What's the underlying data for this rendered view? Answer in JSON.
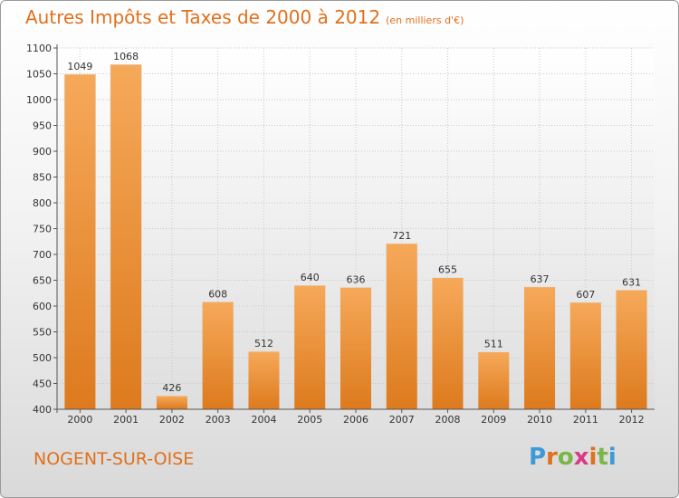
{
  "title": "Autres Impôts et Taxes de 2000 à 2012",
  "unit": "(en milliers d'€)",
  "city": "NOGENT-SUR-OISE",
  "brand": {
    "letters": [
      "P",
      "r",
      "o",
      "x",
      "i",
      "t",
      "i"
    ],
    "colors": [
      "#3c9ad6",
      "#e0701c",
      "#7ab648",
      "#d93a86",
      "#e0701c",
      "#7ab648",
      "#3c9ad6"
    ]
  },
  "colors": {
    "accent": "#e0701c",
    "bar_top": "#f6a95a",
    "bar_bottom": "#dd7a1d"
  },
  "chart_data": {
    "type": "bar",
    "categories": [
      "2000",
      "2001",
      "2002",
      "2003",
      "2004",
      "2005",
      "2006",
      "2007",
      "2008",
      "2009",
      "2010",
      "2011",
      "2012"
    ],
    "values": [
      1049,
      1068,
      426,
      608,
      512,
      640,
      636,
      721,
      655,
      511,
      637,
      607,
      631
    ],
    "ylim": [
      400,
      1100
    ],
    "yticks": [
      400,
      450,
      500,
      550,
      600,
      650,
      700,
      750,
      800,
      850,
      900,
      950,
      1000,
      1050,
      1100
    ],
    "grid": true,
    "xlabel": "",
    "ylabel": ""
  }
}
